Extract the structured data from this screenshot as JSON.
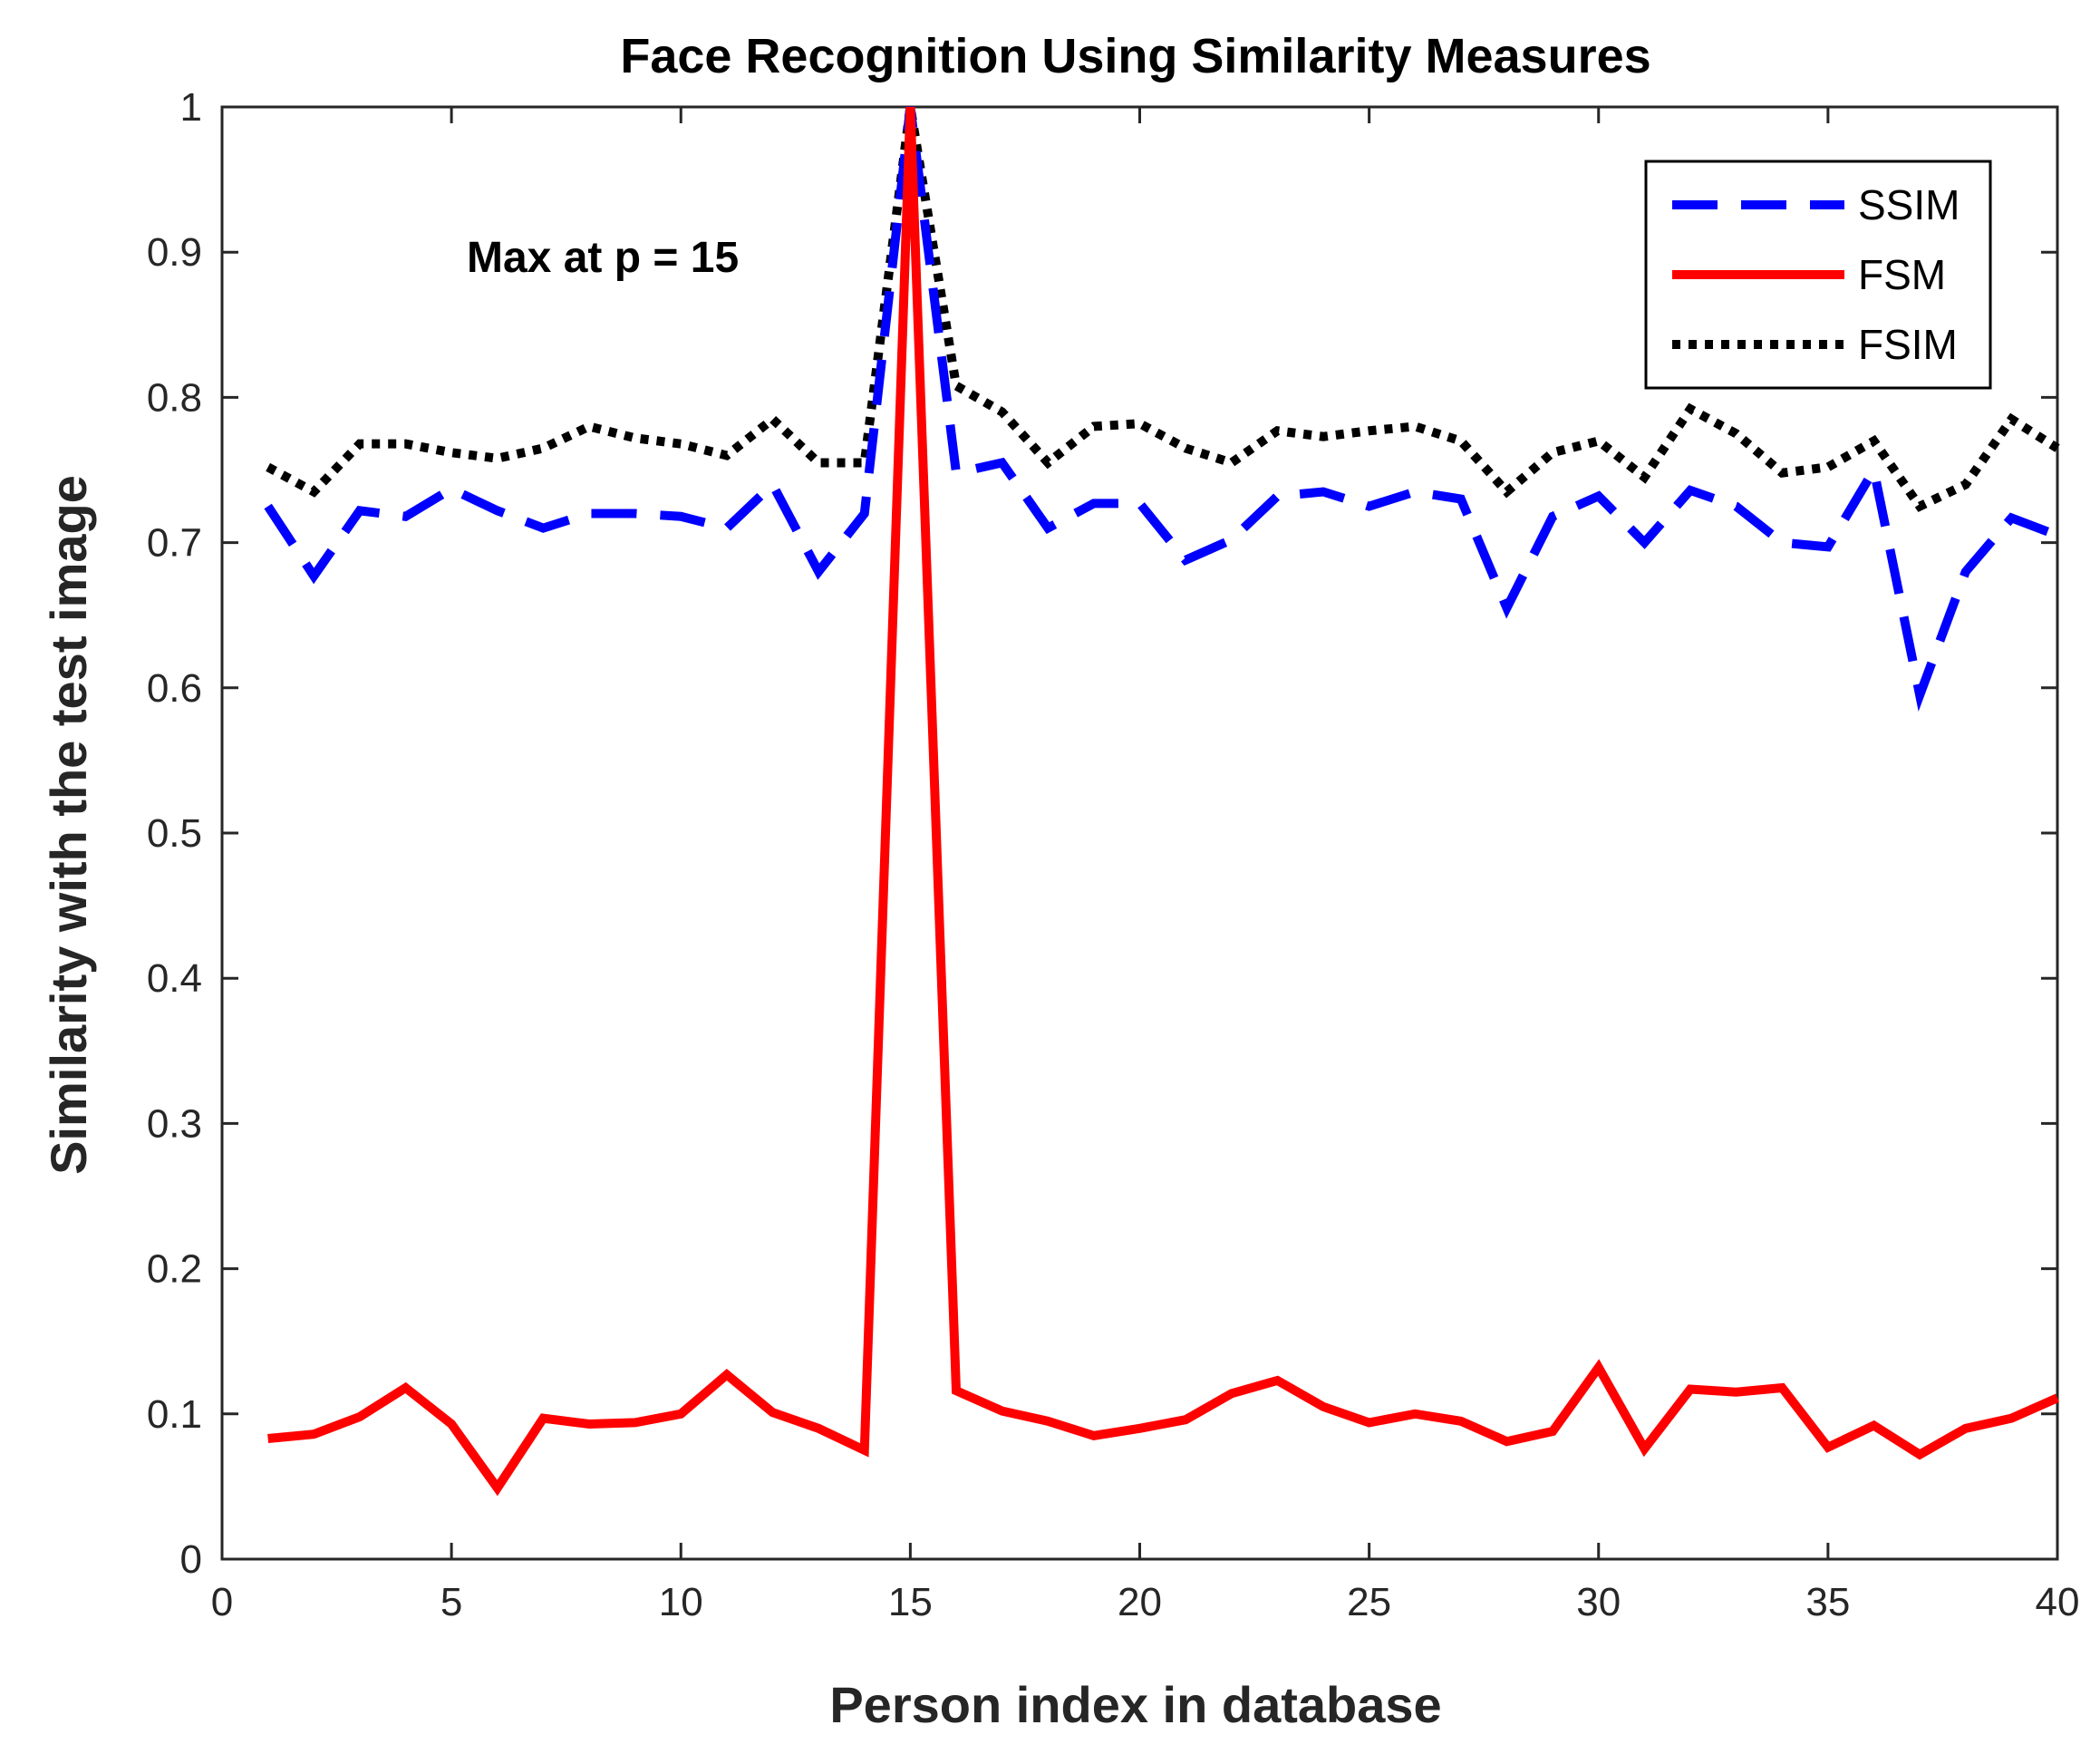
{
  "chart_data": {
    "type": "line",
    "title": "Face Recognition Using Similarity Measures",
    "xlabel": "Person index in database",
    "ylabel": "Similarity with the test image",
    "xlim": [
      0,
      40
    ],
    "ylim": [
      0,
      1
    ],
    "xticks": [
      0,
      5,
      10,
      15,
      20,
      25,
      30,
      35,
      40
    ],
    "yticks": [
      0,
      0.1,
      0.2,
      0.3,
      0.4,
      0.5,
      0.6,
      0.7,
      0.8,
      0.9,
      1
    ],
    "ytick_labels": [
      "0",
      "0.1",
      "0.2",
      "0.3",
      "0.4",
      "0.5",
      "0.6",
      "0.7",
      "0.8",
      "0.9",
      "1"
    ],
    "annotation": "Max at p = 15",
    "legend_position": "top-right",
    "x": [
      1,
      2,
      3,
      4,
      5,
      6,
      7,
      8,
      9,
      10,
      11,
      12,
      13,
      14,
      15,
      16,
      17,
      18,
      19,
      20,
      21,
      22,
      23,
      24,
      25,
      26,
      27,
      28,
      29,
      30,
      31,
      32,
      33,
      34,
      35,
      36,
      37,
      38,
      39,
      40
    ],
    "series": [
      {
        "name": "SSIM",
        "color": "#0000ff",
        "style": "dashed",
        "values": [
          0.725,
          0.677,
          0.722,
          0.718,
          0.737,
          0.722,
          0.71,
          0.72,
          0.72,
          0.718,
          0.71,
          0.74,
          0.68,
          0.72,
          1.0,
          0.748,
          0.755,
          0.71,
          0.727,
          0.727,
          0.688,
          0.702,
          0.732,
          0.735,
          0.725,
          0.735,
          0.73,
          0.655,
          0.718,
          0.732,
          0.7,
          0.736,
          0.725,
          0.7,
          0.697,
          0.75,
          0.595,
          0.68,
          0.717,
          0.705
        ]
      },
      {
        "name": "FSM",
        "color": "#ff0000",
        "style": "solid",
        "values": [
          0.083,
          0.086,
          0.098,
          0.118,
          0.093,
          0.049,
          0.097,
          0.093,
          0.094,
          0.1,
          0.127,
          0.101,
          0.09,
          0.075,
          1.0,
          0.116,
          0.102,
          0.095,
          0.085,
          0.09,
          0.096,
          0.114,
          0.123,
          0.105,
          0.094,
          0.1,
          0.095,
          0.081,
          0.088,
          0.132,
          0.076,
          0.117,
          0.115,
          0.118,
          0.077,
          0.092,
          0.072,
          0.09,
          0.097,
          0.111
        ]
      },
      {
        "name": "FSIM",
        "color": "#000000",
        "style": "dotted",
        "values": [
          0.752,
          0.735,
          0.768,
          0.768,
          0.762,
          0.758,
          0.765,
          0.78,
          0.772,
          0.768,
          0.76,
          0.785,
          0.755,
          0.755,
          1.0,
          0.808,
          0.79,
          0.755,
          0.78,
          0.782,
          0.765,
          0.755,
          0.777,
          0.773,
          0.777,
          0.78,
          0.77,
          0.735,
          0.762,
          0.77,
          0.745,
          0.792,
          0.775,
          0.748,
          0.752,
          0.77,
          0.725,
          0.74,
          0.785,
          0.765
        ]
      }
    ]
  }
}
